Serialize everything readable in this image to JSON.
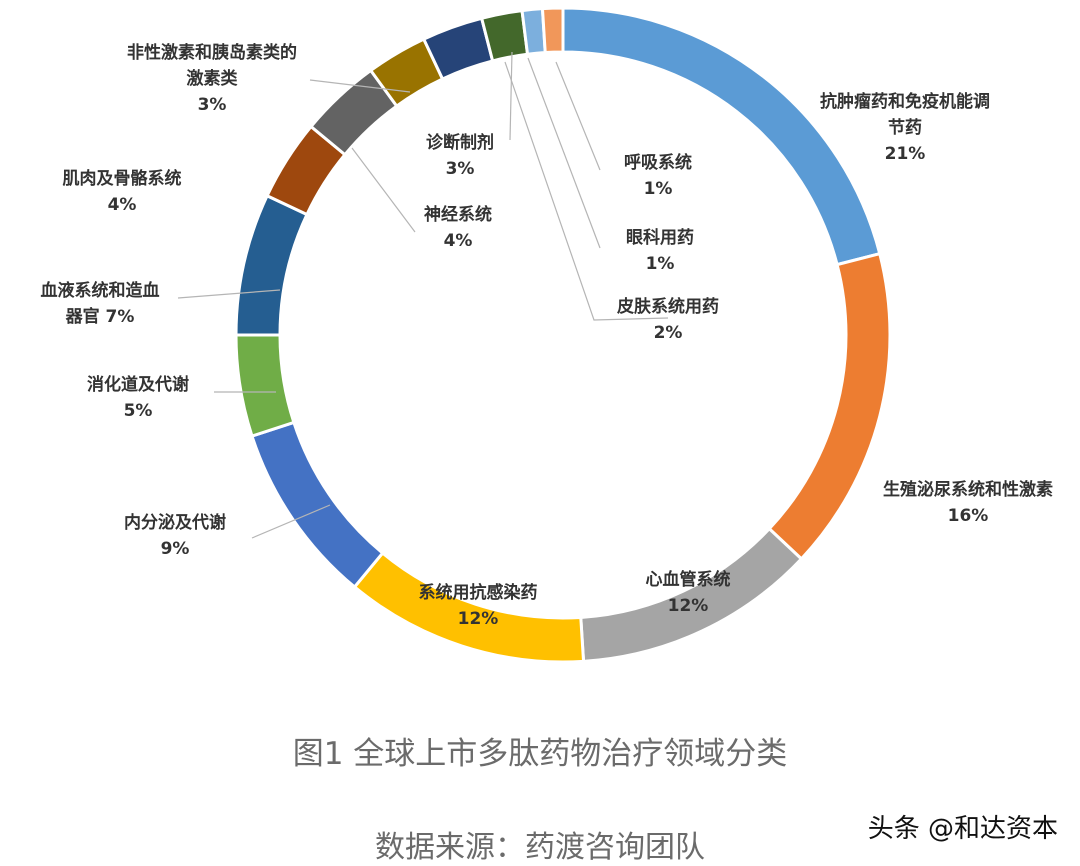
{
  "chart_data": {
    "type": "pie",
    "variant": "donut",
    "series": [
      {
        "label_lines": [
          "抗肿瘤药和免疫机能调",
          "节药"
        ],
        "pct_text": "21%",
        "value": 21,
        "color": "#5b9bd5"
      },
      {
        "label_lines": [
          "生殖泌尿系统和性激素"
        ],
        "pct_text": "16%",
        "value": 16,
        "color": "#ed7d31"
      },
      {
        "label_lines": [
          "心血管系统"
        ],
        "pct_text": "12%",
        "value": 12,
        "color": "#a5a5a5"
      },
      {
        "label_lines": [
          "系统用抗感染药"
        ],
        "pct_text": "12%",
        "value": 12,
        "color": "#ffc000"
      },
      {
        "label_lines": [
          "内分泌及代谢"
        ],
        "pct_text": "9%",
        "value": 9,
        "color": "#4472c4"
      },
      {
        "label_lines": [
          "消化道及代谢"
        ],
        "pct_text": "5%",
        "value": 5,
        "color": "#70ad47"
      },
      {
        "label_lines": [
          "血液系统和造血",
          "器官 7%"
        ],
        "pct_text": "",
        "value": 7,
        "color": "#255e91"
      },
      {
        "label_lines": [
          "肌肉及骨骼系统"
        ],
        "pct_text": "4%",
        "value": 4,
        "color": "#9e480e"
      },
      {
        "label_lines": [
          "神经系统"
        ],
        "pct_text": "4%",
        "value": 4,
        "color": "#636363"
      },
      {
        "label_lines": [
          "非性激素和胰岛素类的",
          "激素类"
        ],
        "pct_text": "3%",
        "value": 3,
        "color": "#997300"
      },
      {
        "label_lines": [
          "诊断制剂"
        ],
        "pct_text": "3%",
        "value": 3,
        "color": "#264478"
      },
      {
        "label_lines": [
          "皮肤系统用药"
        ],
        "pct_text": "2%",
        "value": 2,
        "color": "#43682b"
      },
      {
        "label_lines": [
          "眼科用药"
        ],
        "pct_text": "1%",
        "value": 1,
        "color": "#7cafdd"
      },
      {
        "label_lines": [
          "呼吸系统"
        ],
        "pct_text": "1%",
        "value": 1,
        "color": "#f1975a"
      }
    ]
  },
  "captions": {
    "figure": "图1 全球上市多肽药物治疗领域分类",
    "source": "数据来源：药渡咨询团队"
  },
  "watermark": "头条 @和达资本"
}
